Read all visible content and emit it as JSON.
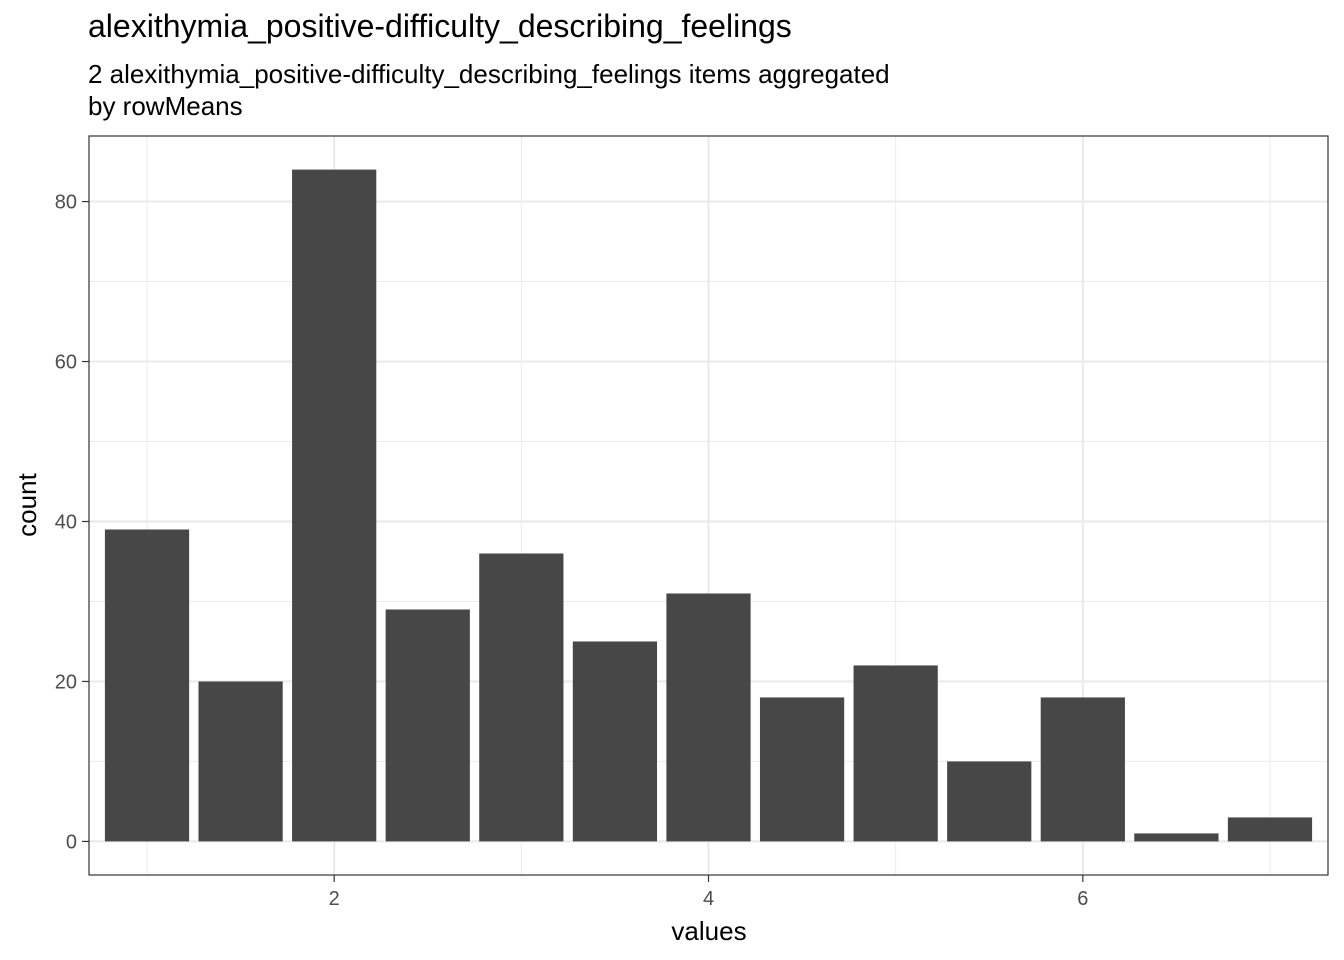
{
  "chart_data": {
    "type": "bar",
    "title": "alexithymia_positive-difficulty_describing_feelings",
    "subtitle_lines": [
      "2 alexithymia_positive-difficulty_describing_feelings items aggregated",
      "by rowMeans"
    ],
    "xlabel": "values",
    "ylabel": "count",
    "x": [
      1,
      1.5,
      2,
      2.5,
      3,
      3.5,
      4,
      4.5,
      5,
      5.5,
      6,
      6.5,
      7
    ],
    "values": [
      39,
      20,
      84,
      29,
      36,
      25,
      31,
      18,
      22,
      10,
      18,
      1,
      3
    ],
    "bar_width": 0.45,
    "xlim": [
      0.69,
      7.31
    ],
    "ylim": [
      -4.2,
      88.2
    ],
    "x_ticks": [
      2,
      4,
      6
    ],
    "y_ticks": [
      0,
      20,
      40,
      60,
      80
    ],
    "x_minor": [
      1,
      3,
      5,
      7
    ],
    "y_minor": [
      10,
      30,
      50,
      70
    ],
    "grid": true,
    "bar_color": "#474747",
    "grid_color": "#ebebeb",
    "panel_border_color": "#333333",
    "tick_label_color": "#4d4d4d"
  }
}
